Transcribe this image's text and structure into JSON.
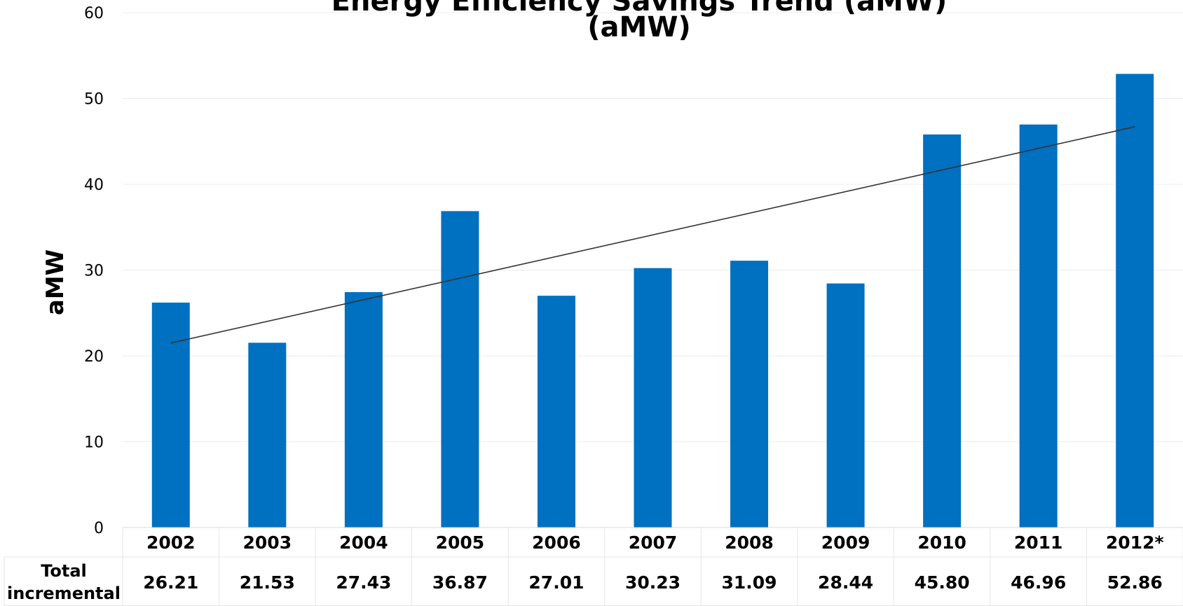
{
  "chart_data": {
    "type": "bar",
    "title_lines": [
      "Energy Efficiency Savings Trend (aMW)",
      "(aMW)"
    ],
    "ylabel": "aMW",
    "xlabel": "",
    "ylim": [
      0,
      60
    ],
    "yticks": [
      0,
      10,
      20,
      30,
      40,
      50,
      60
    ],
    "grid": true,
    "categories": [
      "2002",
      "2003",
      "2004",
      "2005",
      "2006",
      "2007",
      "2008",
      "2009",
      "2010",
      "2011",
      "2012*"
    ],
    "series": [
      {
        "name": "Total incremental",
        "values": [
          26.21,
          21.53,
          27.43,
          36.87,
          27.01,
          30.23,
          31.09,
          28.44,
          45.8,
          46.96,
          52.86
        ],
        "value_labels": [
          "26.21",
          "21.53",
          "27.43",
          "36.87",
          "27.01",
          "30.23",
          "31.09",
          "28.44",
          "45.80",
          "46.96",
          "52.86"
        ],
        "color": "#0070C0"
      }
    ],
    "trendline": {
      "type": "linear",
      "color": "#333333",
      "start_value": 21.5,
      "end_value": 46.7
    },
    "data_table": {
      "row_header_lines": [
        "Total",
        "incremental"
      ]
    }
  }
}
